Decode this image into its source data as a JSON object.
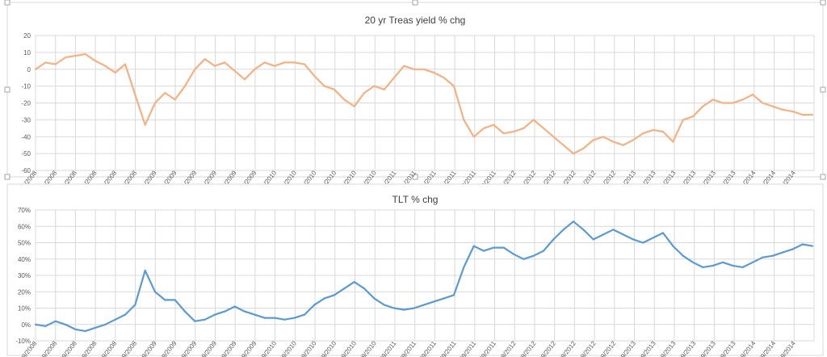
{
  "chart_data": [
    {
      "type": "line",
      "title": "20 yr Treas yield % chg",
      "xlabel": "",
      "ylabel": "",
      "ylim": [
        -60,
        20
      ],
      "y_ticks": [
        "20",
        "10",
        "0",
        "-10",
        "-20",
        "-30",
        "-40",
        "-50",
        "-60"
      ],
      "tick_dates": [
        "1/30/2008",
        "3/30/2008",
        "5/30/2008",
        "7/30/2008",
        "9/30/2008",
        "11/30/2008",
        "1/31/2009",
        "3/31/2009",
        "5/31/2009",
        "7/31/2009",
        "9/30/2009",
        "11/30/2009",
        "1/31/2010",
        "3/31/2010",
        "5/31/2010",
        "7/31/2010",
        "9/30/2010",
        "11/30/2010",
        "1/31/2011",
        "3/31/2011",
        "5/31/2011",
        "7/31/2011",
        "9/30/2011",
        "11/30/2011",
        "1/31/2012",
        "3/31/2012",
        "5/31/2012",
        "7/31/2012",
        "9/30/2012",
        "11/30/2012",
        "1/31/2013",
        "3/31/2013",
        "5/31/2013",
        "7/31/2013",
        "9/30/2013",
        "11/30/2013",
        "1/31/2014",
        "3/31/2014",
        "5/31/2014"
      ],
      "grid": true,
      "series": [
        {
          "color": "#f4b183",
          "x": [
            "2008-01",
            "2008-02",
            "2008-03",
            "2008-04",
            "2008-05",
            "2008-06",
            "2008-07",
            "2008-08",
            "2008-09",
            "2008-10",
            "2008-11",
            "2008-12",
            "2009-01",
            "2009-02",
            "2009-03",
            "2009-04",
            "2009-05",
            "2009-06",
            "2009-07",
            "2009-08",
            "2009-09",
            "2009-10",
            "2009-11",
            "2009-12",
            "2010-01",
            "2010-02",
            "2010-03",
            "2010-04",
            "2010-05",
            "2010-06",
            "2010-07",
            "2010-08",
            "2010-09",
            "2010-10",
            "2010-11",
            "2010-12",
            "2011-01",
            "2011-02",
            "2011-03",
            "2011-04",
            "2011-05",
            "2011-06",
            "2011-07",
            "2011-08",
            "2011-09",
            "2011-10",
            "2011-11",
            "2011-12",
            "2012-01",
            "2012-02",
            "2012-03",
            "2012-04",
            "2012-05",
            "2012-06",
            "2012-07",
            "2012-08",
            "2012-09",
            "2012-10",
            "2012-11",
            "2012-12",
            "2013-01",
            "2013-02",
            "2013-03",
            "2013-04",
            "2013-05",
            "2013-06",
            "2013-07",
            "2013-08",
            "2013-09",
            "2013-10",
            "2013-11",
            "2013-12",
            "2014-01",
            "2014-02",
            "2014-03",
            "2014-04",
            "2014-05",
            "2014-06",
            "2014-07"
          ],
          "values": [
            0,
            4,
            3,
            7,
            8,
            9,
            5,
            2,
            -2,
            3,
            -15,
            -33,
            -20,
            -14,
            -18,
            -10,
            0,
            6,
            2,
            4,
            -1,
            -6,
            0,
            4,
            2,
            4,
            4,
            3,
            -4,
            -10,
            -12,
            -18,
            -22,
            -14,
            -10,
            -12,
            -5,
            2,
            0,
            0,
            -2,
            -5,
            -10,
            -30,
            -40,
            -35,
            -33,
            -38,
            -37,
            -35,
            -30,
            -35,
            -40,
            -45,
            -50,
            -47,
            -42,
            -40,
            -43,
            -45,
            -42,
            -38,
            -36,
            -37,
            -43,
            -30,
            -28,
            -22,
            -18,
            -20,
            -20,
            -18,
            -15,
            -20,
            -22,
            -24,
            -25,
            -27,
            -27
          ]
        }
      ]
    },
    {
      "type": "line",
      "title": "TLT % chg",
      "xlabel": "",
      "ylabel": "",
      "ylim": [
        -0.1,
        0.7
      ],
      "y_ticks": [
        "70%",
        "60%",
        "50%",
        "40%",
        "30%",
        "20%",
        "10%",
        "0%",
        "-10%"
      ],
      "tick_dates": [
        "1/29/2008",
        "3/29/2008",
        "5/29/2008",
        "7/29/2008",
        "9/29/2008",
        "11/29/2008",
        "1/29/2009",
        "3/29/2009",
        "5/29/2009",
        "7/29/2009",
        "9/29/2009",
        "11/29/2009",
        "1/29/2010",
        "3/29/2010",
        "5/29/2010",
        "7/29/2010",
        "9/29/2010",
        "11/29/2010",
        "1/29/2011",
        "3/29/2011",
        "5/29/2011",
        "7/29/2011",
        "9/29/2011",
        "11/29/2011",
        "1/29/2012",
        "3/29/2012",
        "5/29/2012",
        "7/29/2012",
        "9/29/2012",
        "11/29/2012",
        "1/29/2013",
        "3/29/2013",
        "5/29/2013",
        "7/29/2013",
        "9/29/2013",
        "11/29/2013",
        "1/29/2014",
        "3/29/2014",
        "5/29/2014"
      ],
      "grid": true,
      "series": [
        {
          "color": "#5b9bd5",
          "x": [
            "2008-01",
            "2008-02",
            "2008-03",
            "2008-04",
            "2008-05",
            "2008-06",
            "2008-07",
            "2008-08",
            "2008-09",
            "2008-10",
            "2008-11",
            "2008-12",
            "2009-01",
            "2009-02",
            "2009-03",
            "2009-04",
            "2009-05",
            "2009-06",
            "2009-07",
            "2009-08",
            "2009-09",
            "2009-10",
            "2009-11",
            "2009-12",
            "2010-01",
            "2010-02",
            "2010-03",
            "2010-04",
            "2010-05",
            "2010-06",
            "2010-07",
            "2010-08",
            "2010-09",
            "2010-10",
            "2010-11",
            "2010-12",
            "2011-01",
            "2011-02",
            "2011-03",
            "2011-04",
            "2011-05",
            "2011-06",
            "2011-07",
            "2011-08",
            "2011-09",
            "2011-10",
            "2011-11",
            "2011-12",
            "2012-01",
            "2012-02",
            "2012-03",
            "2012-04",
            "2012-05",
            "2012-06",
            "2012-07",
            "2012-08",
            "2012-09",
            "2012-10",
            "2012-11",
            "2012-12",
            "2013-01",
            "2013-02",
            "2013-03",
            "2013-04",
            "2013-05",
            "2013-06",
            "2013-07",
            "2013-08",
            "2013-09",
            "2013-10",
            "2013-11",
            "2013-12",
            "2014-01",
            "2014-02",
            "2014-03",
            "2014-04",
            "2014-05",
            "2014-06",
            "2014-07"
          ],
          "values": [
            0.0,
            -0.01,
            0.02,
            0.0,
            -0.03,
            -0.04,
            -0.02,
            0.0,
            0.03,
            0.06,
            0.12,
            0.33,
            0.2,
            0.15,
            0.15,
            0.08,
            0.02,
            0.03,
            0.06,
            0.08,
            0.11,
            0.08,
            0.06,
            0.04,
            0.04,
            0.03,
            0.04,
            0.06,
            0.12,
            0.16,
            0.18,
            0.22,
            0.26,
            0.22,
            0.16,
            0.12,
            0.1,
            0.09,
            0.1,
            0.12,
            0.14,
            0.16,
            0.18,
            0.35,
            0.48,
            0.45,
            0.47,
            0.47,
            0.43,
            0.4,
            0.42,
            0.45,
            0.52,
            0.58,
            0.63,
            0.58,
            0.52,
            0.55,
            0.58,
            0.55,
            0.52,
            0.5,
            0.53,
            0.56,
            0.48,
            0.42,
            0.38,
            0.35,
            0.36,
            0.38,
            0.36,
            0.35,
            0.38,
            0.41,
            0.42,
            0.44,
            0.46,
            0.49,
            0.48
          ]
        }
      ]
    }
  ]
}
